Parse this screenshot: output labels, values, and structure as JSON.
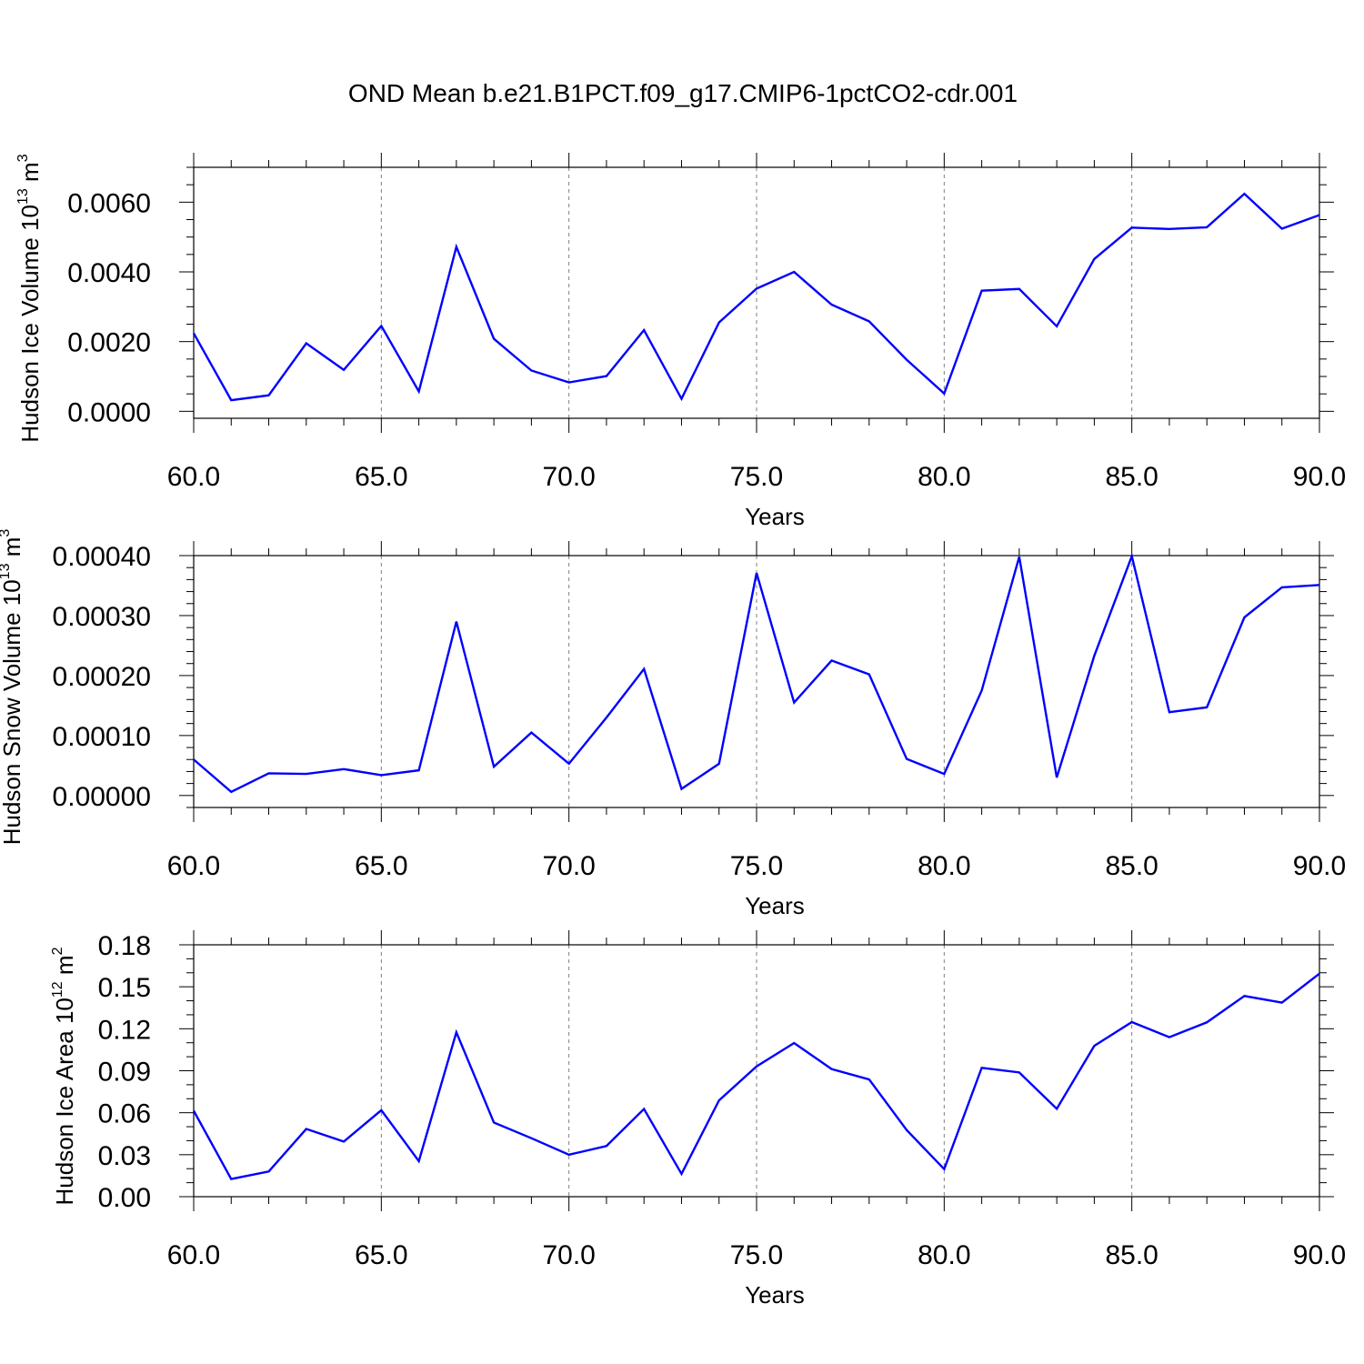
{
  "title": "OND Mean b.e21.B1PCT.f09_g17.CMIP6-1pctCO2-cdr.001",
  "colors": {
    "line": "#0000ff",
    "frame": "#000000",
    "grid": "#7f7f7f",
    "background": "#ffffff"
  },
  "chart_data": [
    {
      "type": "line",
      "xlabel": "Years",
      "ylabel": {
        "text": "Hudson Ice Volume 10",
        "sup": "13",
        "unit": " m",
        "unit_sup": "3"
      },
      "xlim": [
        60,
        90
      ],
      "ylim": [
        -0.0002,
        0.007
      ],
      "xticks": [
        60,
        65,
        70,
        75,
        80,
        85,
        90
      ],
      "xtick_labels": [
        "60.0",
        "65.0",
        "70.0",
        "75.0",
        "80.0",
        "85.0",
        "90.0"
      ],
      "yticks": [
        0.0,
        0.002,
        0.004,
        0.006
      ],
      "ytick_labels": [
        "0.0000",
        "0.0020",
        "0.0040",
        "0.0060"
      ],
      "yminor_step": 0.0005,
      "grid": "vertical dashed at major x ticks",
      "x": [
        60,
        61,
        62,
        63,
        64,
        65,
        66,
        67,
        68,
        69,
        70,
        71,
        72,
        73,
        74,
        75,
        76,
        77,
        78,
        79,
        80,
        81,
        82,
        83,
        84,
        85,
        86,
        87,
        88,
        89,
        90
      ],
      "series": [
        {
          "values": [
            0.00224,
            0.00032,
            0.00046,
            0.00195,
            0.00119,
            0.00245,
            0.00057,
            0.00472,
            0.00208,
            0.00117,
            0.00083,
            0.00101,
            0.00233,
            0.00036,
            0.00255,
            0.00352,
            0.004,
            0.00306,
            0.00258,
            0.00148,
            0.00051,
            0.00346,
            0.00351,
            0.00244,
            0.00437,
            0.00527,
            0.00523,
            0.00528,
            0.00624,
            0.00524,
            0.00563
          ]
        }
      ]
    },
    {
      "type": "line",
      "xlabel": "Years",
      "ylabel": {
        "text": "Hudson Snow Volume 10",
        "sup": "13",
        "unit": " m",
        "unit_sup": "3"
      },
      "xlim": [
        60,
        90
      ],
      "ylim": [
        -2e-05,
        0.0004
      ],
      "xticks": [
        60,
        65,
        70,
        75,
        80,
        85,
        90
      ],
      "xtick_labels": [
        "60.0",
        "65.0",
        "70.0",
        "75.0",
        "80.0",
        "85.0",
        "90.0"
      ],
      "yticks": [
        0.0,
        0.0001,
        0.0002,
        0.0003,
        0.0004
      ],
      "ytick_labels": [
        "0.00000",
        "0.00010",
        "0.00020",
        "0.00030",
        "0.00040"
      ],
      "yminor_step": 2e-05,
      "grid": "vertical dashed at major x ticks",
      "x": [
        60,
        61,
        62,
        63,
        64,
        65,
        66,
        67,
        68,
        69,
        70,
        71,
        72,
        73,
        74,
        75,
        76,
        77,
        78,
        79,
        80,
        81,
        82,
        83,
        84,
        85,
        86,
        87,
        88,
        89,
        90
      ],
      "series": [
        {
          "values": [
            6e-05,
            6e-06,
            3.7e-05,
            3.6e-05,
            4.4e-05,
            3.4e-05,
            4.2e-05,
            0.00029,
            4.8e-05,
            0.000105,
            5.3e-05,
            0.00013,
            0.000211,
            1.1e-05,
            5.3e-05,
            0.000371,
            0.000155,
            0.000225,
            0.000202,
            6.1e-05,
            3.6e-05,
            0.000175,
            0.000398,
            3e-05,
            0.000233,
            0.000399,
            0.000139,
            0.000147,
            0.000297,
            0.000347,
            0.000351
          ]
        }
      ]
    },
    {
      "type": "line",
      "xlabel": "Years",
      "ylabel": {
        "text": "Hudson Ice Area 10",
        "sup": "12",
        "unit": " m",
        "unit_sup": "2"
      },
      "xlim": [
        60,
        90
      ],
      "ylim": [
        0.0,
        0.18
      ],
      "xticks": [
        60,
        65,
        70,
        75,
        80,
        85,
        90
      ],
      "xtick_labels": [
        "60.0",
        "65.0",
        "70.0",
        "75.0",
        "80.0",
        "85.0",
        "90.0"
      ],
      "yticks": [
        0.0,
        0.03,
        0.06,
        0.09,
        0.12,
        0.15,
        0.18
      ],
      "ytick_labels": [
        "0.00",
        "0.03",
        "0.06",
        "0.09",
        "0.12",
        "0.15",
        "0.18"
      ],
      "yminor_step": 0.01,
      "grid": "vertical dashed at major x ticks",
      "x": [
        60,
        61,
        62,
        63,
        64,
        65,
        66,
        67,
        68,
        69,
        70,
        71,
        72,
        73,
        74,
        75,
        76,
        77,
        78,
        79,
        80,
        81,
        82,
        83,
        84,
        85,
        86,
        87,
        88,
        89,
        90
      ],
      "series": [
        {
          "values": [
            0.0614,
            0.0126,
            0.018,
            0.0484,
            0.0394,
            0.0618,
            0.0254,
            0.1175,
            0.053,
            0.0418,
            0.03,
            0.0362,
            0.0627,
            0.0163,
            0.0688,
            0.0931,
            0.1098,
            0.0912,
            0.0838,
            0.0476,
            0.0197,
            0.0921,
            0.0888,
            0.0628,
            0.1078,
            0.1248,
            0.114,
            0.1246,
            0.1434,
            0.1387,
            0.1594
          ]
        }
      ]
    }
  ]
}
